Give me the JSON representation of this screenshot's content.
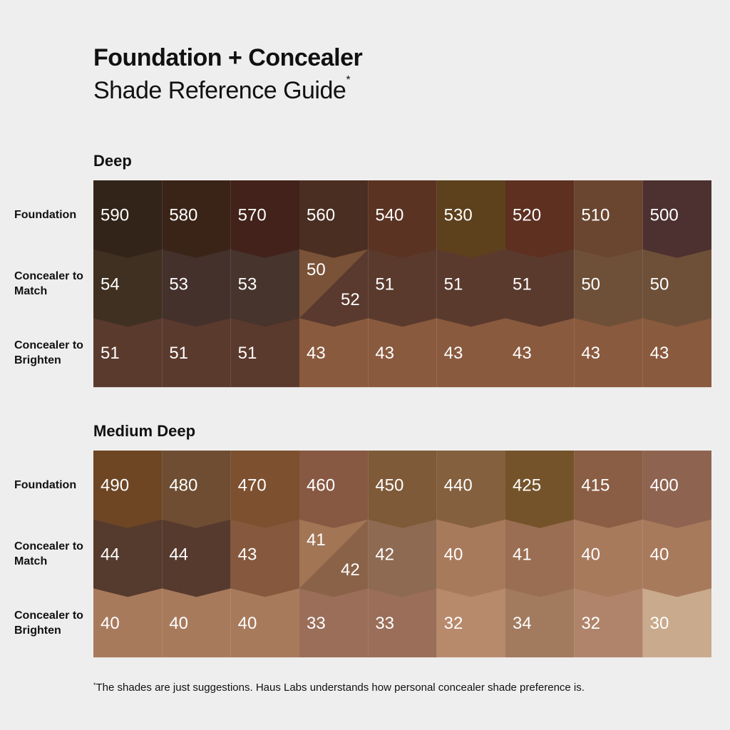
{
  "header": {
    "title": "Foundation + Concealer",
    "subtitle": "Shade Reference Guide",
    "subtitle_mark": "*"
  },
  "sections": [
    {
      "title": "Deep",
      "rows": [
        {
          "label": "Foundation",
          "cells": [
            {
              "shades": [
                {
                  "label": "590",
                  "color": "#33241a"
                }
              ]
            },
            {
              "shades": [
                {
                  "label": "580",
                  "color": "#3a2418"
                }
              ]
            },
            {
              "shades": [
                {
                  "label": "570",
                  "color": "#42221a"
                }
              ]
            },
            {
              "shades": [
                {
                  "label": "560",
                  "color": "#4a2e22"
                }
              ]
            },
            {
              "shades": [
                {
                  "label": "540",
                  "color": "#5a3322"
                }
              ]
            },
            {
              "shades": [
                {
                  "label": "530",
                  "color": "#5d401c"
                }
              ]
            },
            {
              "shades": [
                {
                  "label": "520",
                  "color": "#5e3020"
                }
              ]
            },
            {
              "shades": [
                {
                  "label": "510",
                  "color": "#6a4630"
                }
              ]
            },
            {
              "shades": [
                {
                  "label": "500",
                  "color": "#4d3030"
                }
              ]
            }
          ]
        },
        {
          "label": "Concealer to Match",
          "cells": [
            {
              "shades": [
                {
                  "label": "54",
                  "color": "#3f3022"
                }
              ]
            },
            {
              "shades": [
                {
                  "label": "53",
                  "color": "#45312c"
                }
              ]
            },
            {
              "shades": [
                {
                  "label": "53",
                  "color": "#47342c"
                }
              ]
            },
            {
              "shades": [
                {
                  "label": "50",
                  "color": "#7a5238"
                },
                {
                  "label": "52",
                  "color": "#5a3a2e"
                }
              ]
            },
            {
              "shades": [
                {
                  "label": "51",
                  "color": "#5b3a2e"
                }
              ]
            },
            {
              "shades": [
                {
                  "label": "51",
                  "color": "#5b3a2e"
                }
              ]
            },
            {
              "shades": [
                {
                  "label": "51",
                  "color": "#5b3a2e"
                }
              ]
            },
            {
              "shades": [
                {
                  "label": "50",
                  "color": "#6e5038"
                }
              ]
            },
            {
              "shades": [
                {
                  "label": "50",
                  "color": "#6e5038"
                }
              ]
            }
          ]
        },
        {
          "label": "Concealer to Brighten",
          "cells": [
            {
              "shades": [
                {
                  "label": "51",
                  "color": "#5b3a2e"
                }
              ]
            },
            {
              "shades": [
                {
                  "label": "51",
                  "color": "#5b3a2e"
                }
              ]
            },
            {
              "shades": [
                {
                  "label": "51",
                  "color": "#5b3a2e"
                }
              ]
            },
            {
              "shades": [
                {
                  "label": "43",
                  "color": "#8a5a3e"
                }
              ]
            },
            {
              "shades": [
                {
                  "label": "43",
                  "color": "#8a5a3e"
                }
              ]
            },
            {
              "shades": [
                {
                  "label": "43",
                  "color": "#8a5a3e"
                }
              ]
            },
            {
              "shades": [
                {
                  "label": "43",
                  "color": "#8a5a3e"
                }
              ]
            },
            {
              "shades": [
                {
                  "label": "43",
                  "color": "#8a5a3e"
                }
              ]
            },
            {
              "shades": [
                {
                  "label": "43",
                  "color": "#8a5a3e"
                }
              ]
            }
          ]
        }
      ]
    },
    {
      "title": "Medium Deep",
      "rows": [
        {
          "label": "Foundation",
          "cells": [
            {
              "shades": [
                {
                  "label": "490",
                  "color": "#6e4624"
                }
              ]
            },
            {
              "shades": [
                {
                  "label": "480",
                  "color": "#6e4d32"
                }
              ]
            },
            {
              "shades": [
                {
                  "label": "470",
                  "color": "#7d5030"
                }
              ]
            },
            {
              "shades": [
                {
                  "label": "460",
                  "color": "#875842"
                }
              ]
            },
            {
              "shades": [
                {
                  "label": "450",
                  "color": "#7f5a38"
                }
              ]
            },
            {
              "shades": [
                {
                  "label": "440",
                  "color": "#84603e"
                }
              ]
            },
            {
              "shades": [
                {
                  "label": "425",
                  "color": "#75532a"
                }
              ]
            },
            {
              "shades": [
                {
                  "label": "415",
                  "color": "#8a5e44"
                }
              ]
            },
            {
              "shades": [
                {
                  "label": "400",
                  "color": "#8e6450"
                }
              ]
            }
          ]
        },
        {
          "label": "Concealer to Match",
          "cells": [
            {
              "shades": [
                {
                  "label": "44",
                  "color": "#553a2e"
                }
              ]
            },
            {
              "shades": [
                {
                  "label": "44",
                  "color": "#563a2e"
                }
              ]
            },
            {
              "shades": [
                {
                  "label": "43",
                  "color": "#86593e"
                }
              ]
            },
            {
              "shades": [
                {
                  "label": "41",
                  "color": "#a27555"
                },
                {
                  "label": "42",
                  "color": "#8a6248"
                }
              ]
            },
            {
              "shades": [
                {
                  "label": "42",
                  "color": "#8e6a52"
                }
              ]
            },
            {
              "shades": [
                {
                  "label": "40",
                  "color": "#a87a5c"
                }
              ]
            },
            {
              "shades": [
                {
                  "label": "41",
                  "color": "#9a6e52"
                }
              ]
            },
            {
              "shades": [
                {
                  "label": "40",
                  "color": "#a87a5c"
                }
              ]
            },
            {
              "shades": [
                {
                  "label": "40",
                  "color": "#a87a5c"
                }
              ]
            }
          ]
        },
        {
          "label": "Concealer to Brighten",
          "cells": [
            {
              "shades": [
                {
                  "label": "40",
                  "color": "#a87a5c"
                }
              ]
            },
            {
              "shades": [
                {
                  "label": "40",
                  "color": "#a87a5c"
                }
              ]
            },
            {
              "shades": [
                {
                  "label": "40",
                  "color": "#a87a5c"
                }
              ]
            },
            {
              "shades": [
                {
                  "label": "33",
                  "color": "#9a6e58"
                }
              ]
            },
            {
              "shades": [
                {
                  "label": "33",
                  "color": "#9a6e58"
                }
              ]
            },
            {
              "shades": [
                {
                  "label": "32",
                  "color": "#b88a6c"
                }
              ]
            },
            {
              "shades": [
                {
                  "label": "34",
                  "color": "#a27a5e"
                }
              ]
            },
            {
              "shades": [
                {
                  "label": "32",
                  "color": "#b0846a"
                }
              ]
            },
            {
              "shades": [
                {
                  "label": "30",
                  "color": "#c9aa8c"
                }
              ]
            }
          ]
        }
      ]
    }
  ],
  "footnote": {
    "mark": "*",
    "text": "The shades are just suggestions. Haus Labs understands how personal concealer shade preference is."
  }
}
